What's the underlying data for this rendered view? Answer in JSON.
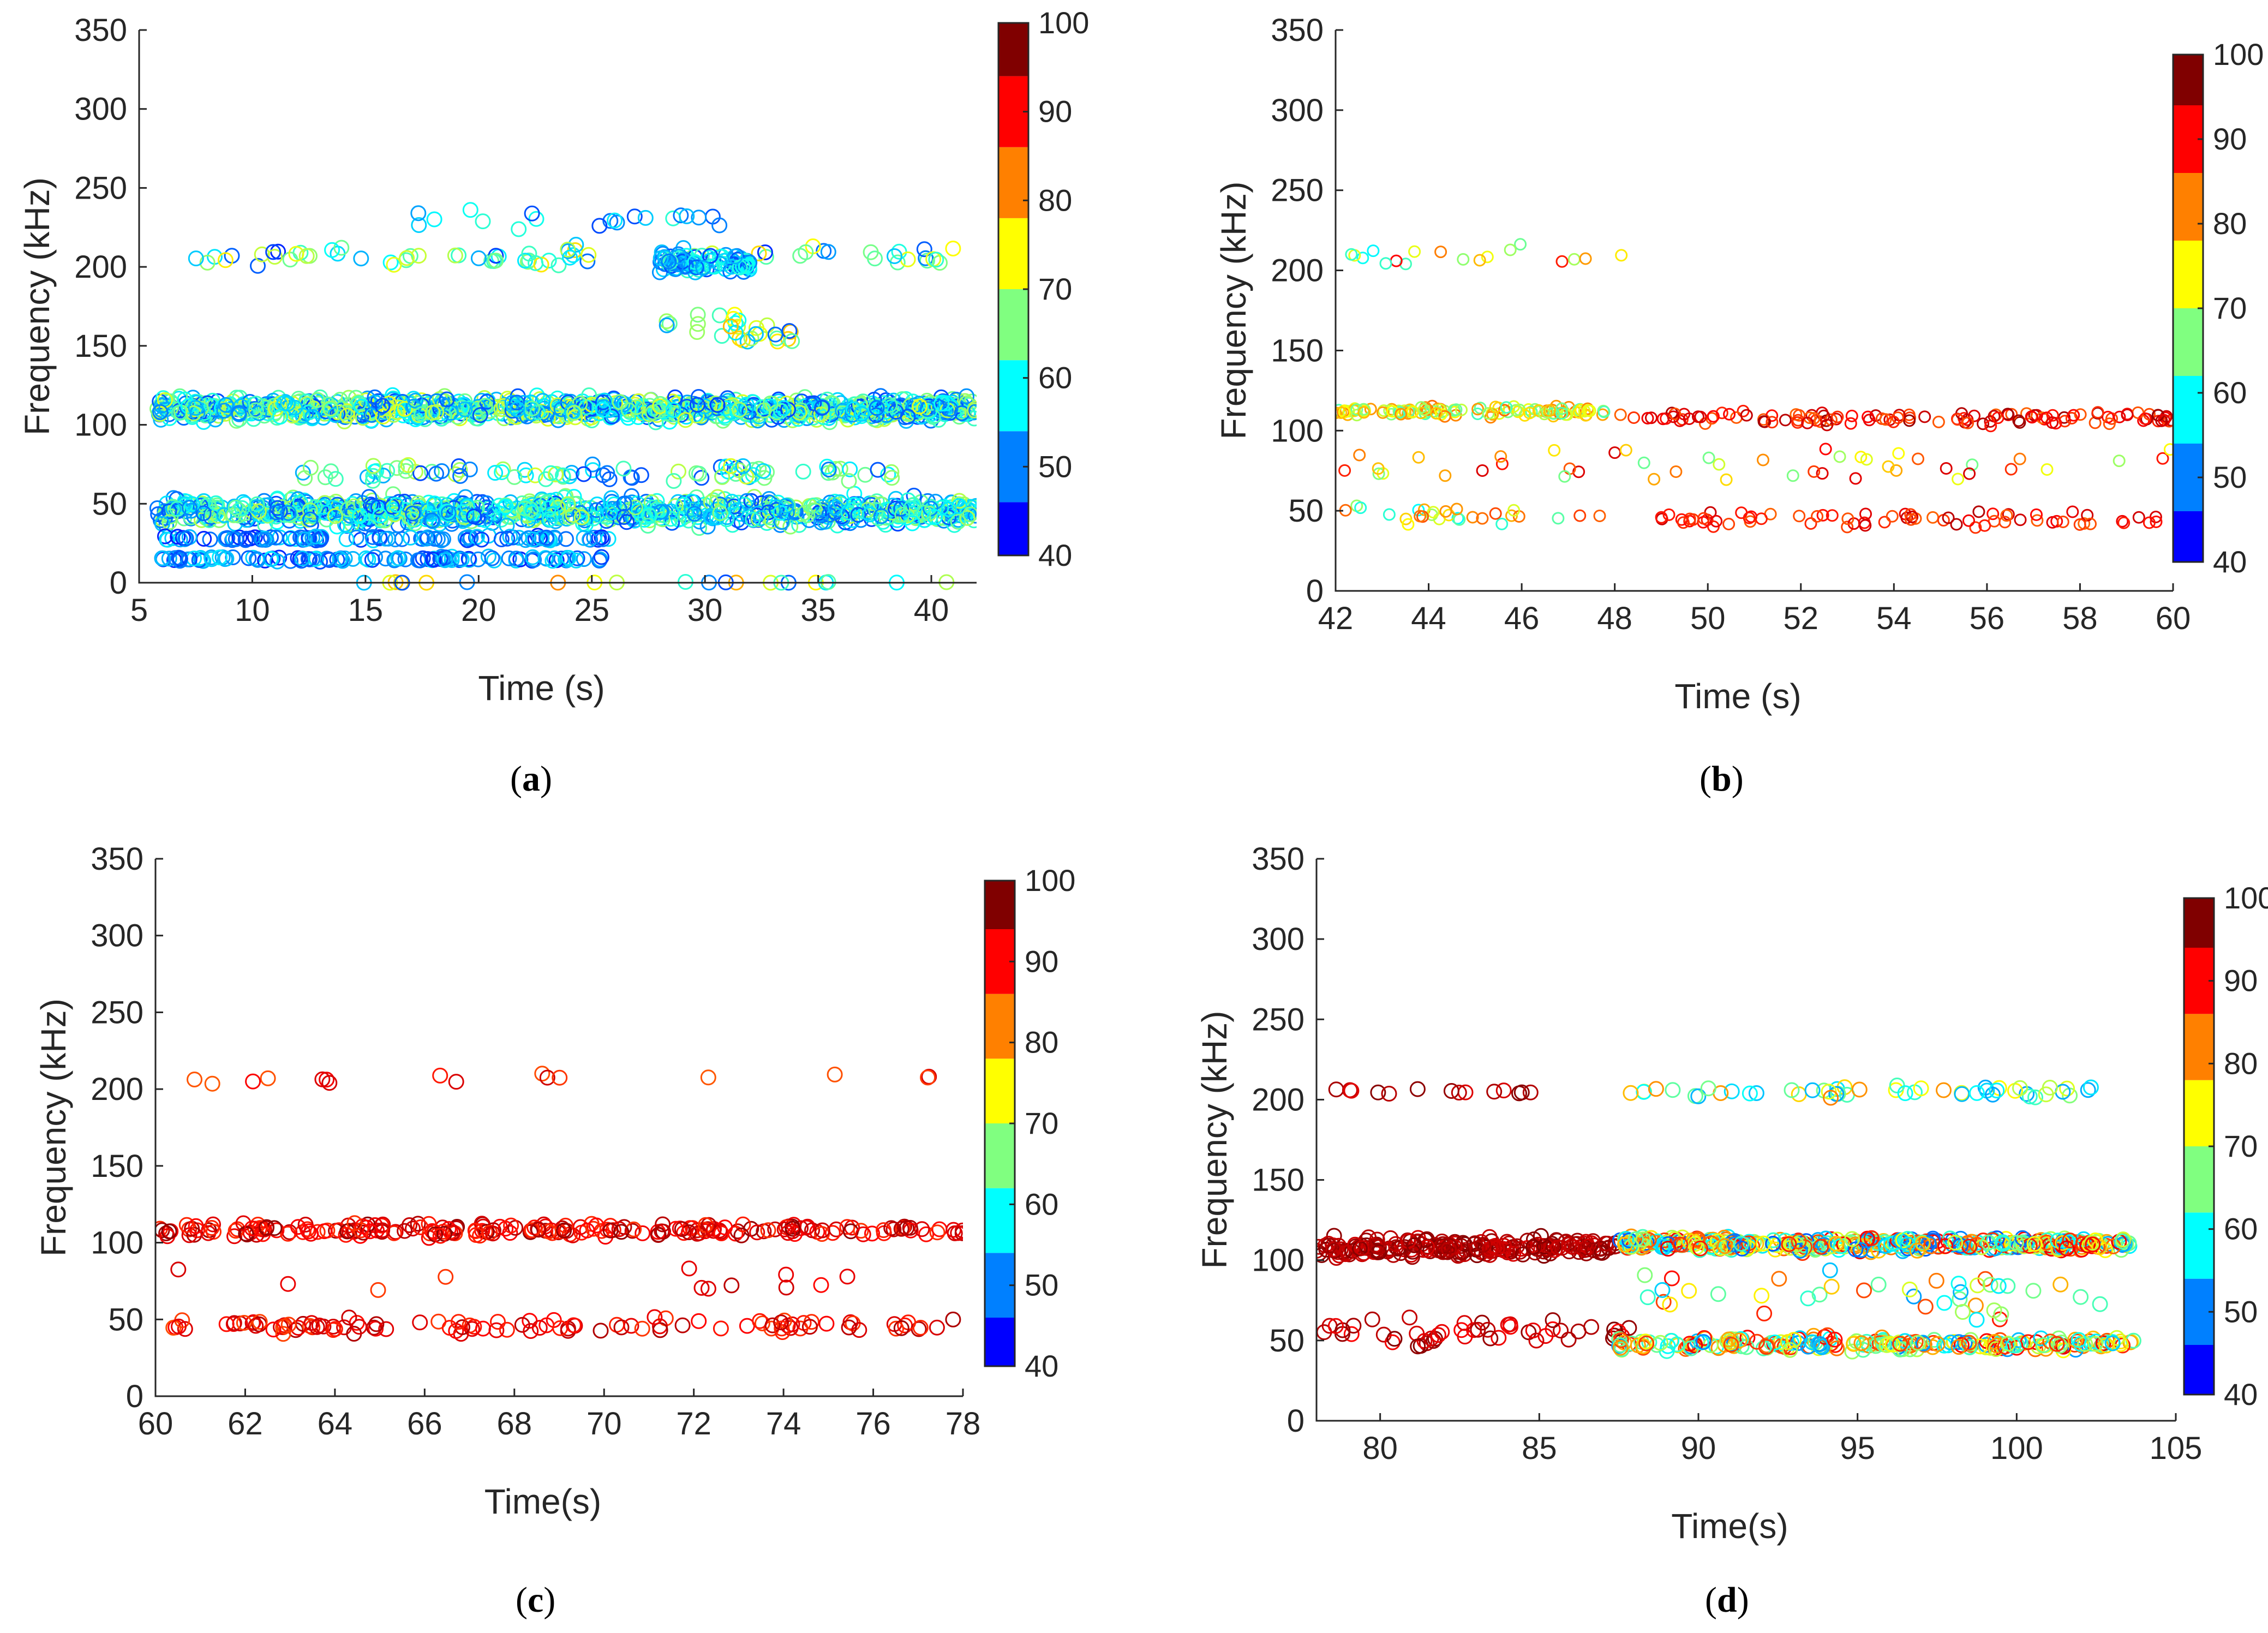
{
  "captions": [
    "a",
    "b",
    "c",
    "d"
  ],
  "colorbar": {
    "ticks": [
      "40",
      "50",
      "60",
      "70",
      "80",
      "90",
      "100"
    ],
    "colors": [
      "#0000ff",
      "#0080ff",
      "#00ffff",
      "#80ff80",
      "#ffff00",
      "#ff8000",
      "#ff0000",
      "#800000"
    ]
  },
  "chart_data": [
    {
      "type": "scatter",
      "panel": "a",
      "xlabel": "Time (s)",
      "ylabel": "Frequency (kHz)",
      "xlim": [
        5,
        42
      ],
      "ylim": [
        0,
        350
      ],
      "xticks": [
        5,
        10,
        15,
        20,
        25,
        30,
        35,
        40
      ],
      "yticks": [
        0,
        50,
        100,
        150,
        200,
        250,
        300,
        350
      ],
      "colorbar": [
        40,
        100
      ],
      "bands": [
        {
          "x0": 5.8,
          "x1": 42,
          "y": 110,
          "spread": 10,
          "count": 1100,
          "c0": 44,
          "c1": 70
        },
        {
          "x0": 5.8,
          "x1": 42,
          "y": 45,
          "spread": 12,
          "count": 900,
          "c0": 44,
          "c1": 68
        },
        {
          "x0": 6,
          "x1": 26,
          "y": 15,
          "spread": 2,
          "count": 120,
          "c0": 42,
          "c1": 55
        },
        {
          "x0": 6,
          "x1": 26,
          "y": 28,
          "spread": 2,
          "count": 110,
          "c0": 42,
          "c1": 55
        },
        {
          "x0": 12,
          "x1": 40,
          "y": 70,
          "spread": 8,
          "count": 90,
          "c0": 44,
          "c1": 70
        },
        {
          "x0": 7,
          "x1": 42,
          "y": 207,
          "spread": 10,
          "count": 80,
          "c0": 42,
          "c1": 75
        },
        {
          "x0": 28,
          "x1": 32,
          "y": 202,
          "spread": 8,
          "count": 110,
          "c0": 44,
          "c1": 60
        },
        {
          "x0": 17,
          "x1": 31,
          "y": 230,
          "spread": 8,
          "count": 20,
          "c0": 44,
          "c1": 60
        },
        {
          "x0": 28,
          "x1": 34,
          "y": 160,
          "spread": 15,
          "count": 30,
          "c0": 45,
          "c1": 80
        },
        {
          "x0": 14,
          "x1": 41,
          "y": 0,
          "spread": 1,
          "count": 22,
          "c0": 45,
          "c1": 80
        }
      ]
    },
    {
      "type": "scatter",
      "panel": "b",
      "xlabel": "Time (s)",
      "ylabel": "Frequency (kHz)",
      "xlim": [
        42,
        60
      ],
      "ylim": [
        0,
        350
      ],
      "xticks": [
        42,
        44,
        46,
        48,
        50,
        52,
        54,
        56,
        58,
        60
      ],
      "yticks": [
        0,
        50,
        100,
        150,
        200,
        250,
        300,
        350
      ],
      "colorbar": [
        40,
        100
      ],
      "bands": [
        {
          "x0": 42,
          "x1": 47.8,
          "y": 112,
          "spread": 4,
          "count": 120,
          "c0": 60,
          "c1": 82
        },
        {
          "x0": 47.8,
          "x1": 60,
          "y": 108,
          "spread": 6,
          "count": 120,
          "c0": 82,
          "c1": 98
        },
        {
          "x0": 42,
          "x1": 48,
          "y": 48,
          "spread": 8,
          "count": 28,
          "c0": 55,
          "c1": 85
        },
        {
          "x0": 48,
          "x1": 60,
          "y": 45,
          "spread": 8,
          "count": 70,
          "c0": 82,
          "c1": 96
        },
        {
          "x0": 42,
          "x1": 60,
          "y": 78,
          "spread": 18,
          "count": 45,
          "c0": 62,
          "c1": 94
        },
        {
          "x0": 42,
          "x1": 49,
          "y": 208,
          "spread": 10,
          "count": 18,
          "c0": 55,
          "c1": 90
        }
      ]
    },
    {
      "type": "scatter",
      "panel": "c",
      "xlabel": "Time(s)",
      "ylabel": "Frequency (kHz)",
      "xlim": [
        60,
        78
      ],
      "ylim": [
        0,
        350
      ],
      "xticks": [
        60,
        62,
        64,
        66,
        68,
        70,
        72,
        74,
        76,
        78
      ],
      "yticks": [
        0,
        50,
        100,
        150,
        200,
        250,
        300,
        350
      ],
      "colorbar": [
        40,
        100
      ],
      "bands": [
        {
          "x0": 60,
          "x1": 78,
          "y": 108,
          "spread": 6,
          "count": 230,
          "c0": 86,
          "c1": 99
        },
        {
          "x0": 60,
          "x1": 78,
          "y": 46,
          "spread": 7,
          "count": 110,
          "c0": 84,
          "c1": 97
        },
        {
          "x0": 60,
          "x1": 78,
          "y": 75,
          "spread": 12,
          "count": 12,
          "c0": 84,
          "c1": 96
        },
        {
          "x0": 60,
          "x1": 78,
          "y": 207,
          "spread": 6,
          "count": 16,
          "c0": 82,
          "c1": 94
        }
      ]
    },
    {
      "type": "scatter",
      "panel": "d",
      "xlabel": "Time(s)",
      "ylabel": "Frequency (kHz)",
      "xlim": [
        78,
        105
      ],
      "ylim": [
        0,
        350
      ],
      "xticks": [
        80,
        85,
        90,
        95,
        100,
        105
      ],
      "yticks": [
        0,
        50,
        100,
        150,
        200,
        250,
        300,
        350
      ],
      "colorbar": [
        40,
        100
      ],
      "bands": [
        {
          "x0": 78,
          "x1": 87.5,
          "y": 108,
          "spread": 8,
          "count": 230,
          "c0": 93,
          "c1": 100
        },
        {
          "x0": 87.5,
          "x1": 103.7,
          "y": 110,
          "spread": 6,
          "count": 420,
          "c0": 45,
          "c1": 92
        },
        {
          "x0": 78,
          "x1": 88,
          "y": 55,
          "spread": 15,
          "count": 50,
          "c0": 90,
          "c1": 100
        },
        {
          "x0": 87.5,
          "x1": 103.7,
          "y": 48,
          "spread": 6,
          "count": 240,
          "c0": 48,
          "c1": 92
        },
        {
          "x0": 78,
          "x1": 86,
          "y": 205,
          "spread": 3,
          "count": 14,
          "c0": 92,
          "c1": 100
        },
        {
          "x0": 87.5,
          "x1": 103.7,
          "y": 205,
          "spread": 6,
          "count": 50,
          "c0": 50,
          "c1": 80
        },
        {
          "x0": 88,
          "x1": 103,
          "y": 80,
          "spread": 25,
          "count": 40,
          "c0": 50,
          "c1": 90
        }
      ]
    }
  ]
}
